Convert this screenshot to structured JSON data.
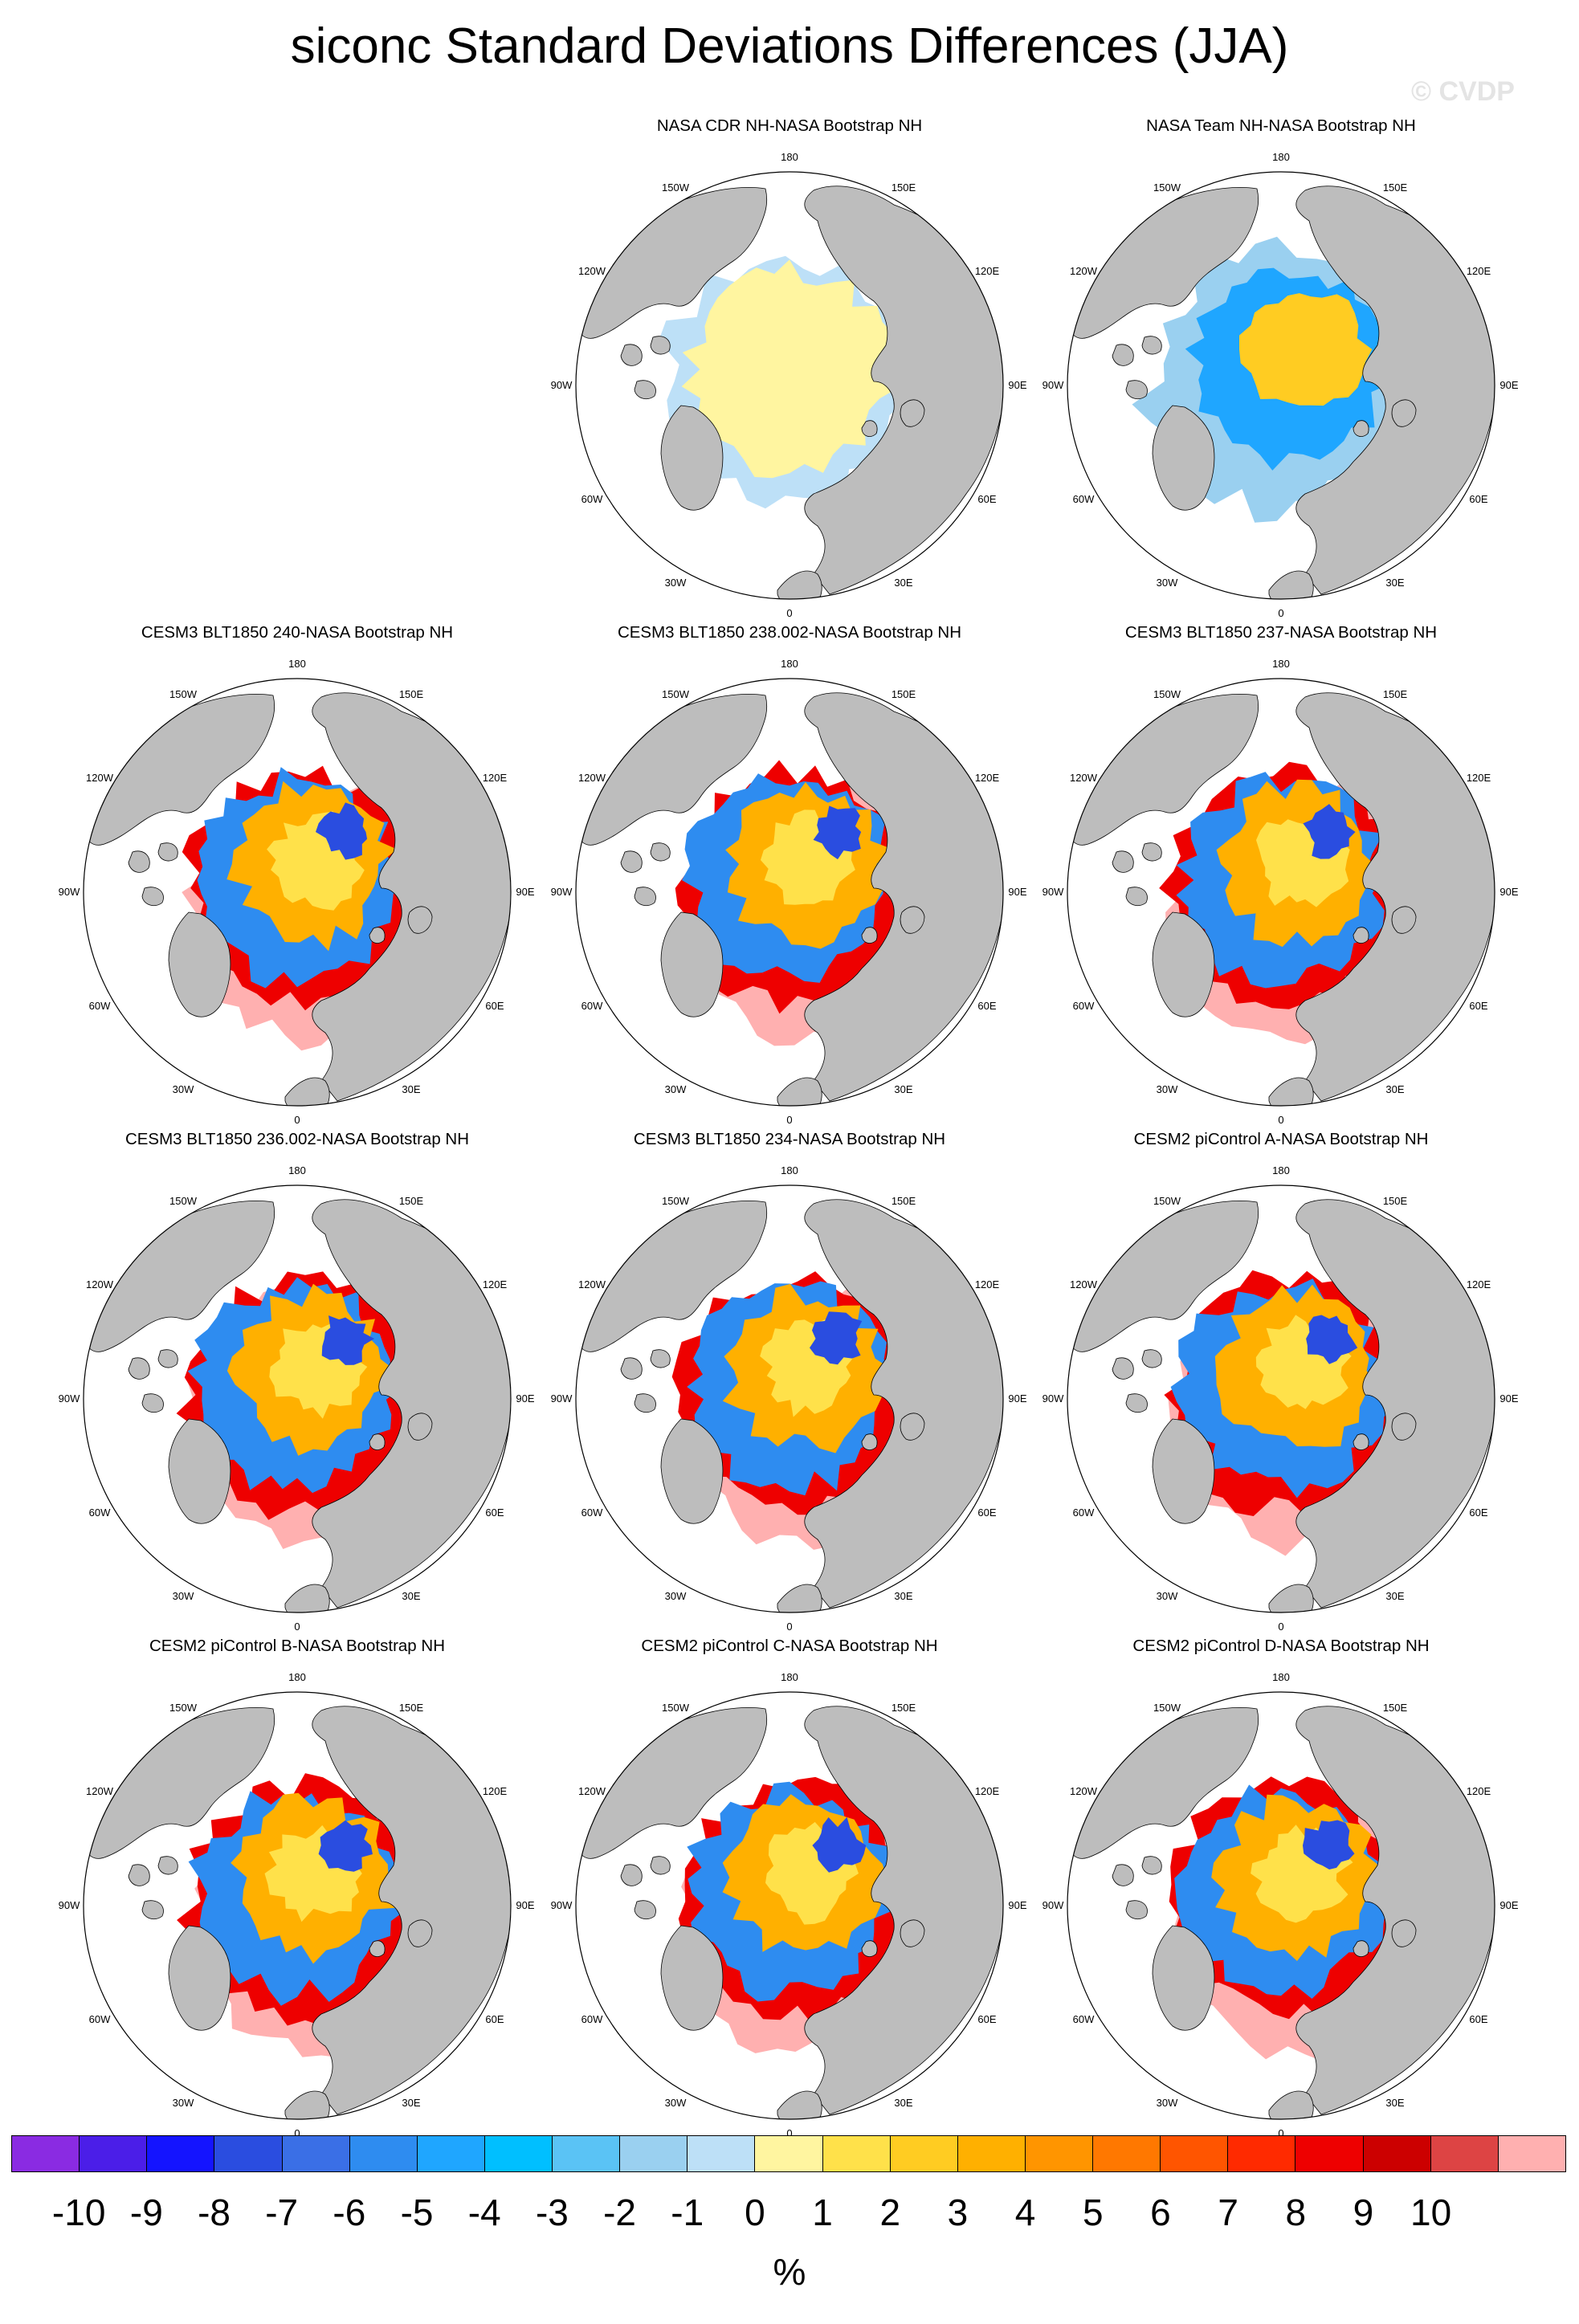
{
  "title": "siconc Standard Deviations Differences (JJA)",
  "watermark": "© CVDP",
  "lon_labels": [
    "180",
    "150E",
    "120E",
    "90E",
    "60E",
    "30E",
    "0",
    "30W",
    "60W",
    "90W",
    "120W",
    "150W"
  ],
  "panels": [
    {
      "title": "NASA CDR NH-NASA Bootstrap NH",
      "style": "cdr"
    },
    {
      "title": "NASA Team NH-NASA Bootstrap NH",
      "style": "team"
    },
    {
      "title": "CESM3 BLT1850 240-NASA Bootstrap NH",
      "style": "cesm3"
    },
    {
      "title": "CESM3 BLT1850 238.002-NASA Bootstrap NH",
      "style": "cesm3"
    },
    {
      "title": "CESM3 BLT1850 237-NASA Bootstrap NH",
      "style": "cesm3"
    },
    {
      "title": "CESM3 BLT1850 236.002-NASA Bootstrap NH",
      "style": "cesm3"
    },
    {
      "title": "CESM3 BLT1850 234-NASA Bootstrap NH",
      "style": "cesm3"
    },
    {
      "title": "CESM2 piControl A-NASA Bootstrap NH",
      "style": "cesm2"
    },
    {
      "title": "CESM2 piControl B-NASA Bootstrap NH",
      "style": "cesm2"
    },
    {
      "title": "CESM2 piControl C-NASA Bootstrap NH",
      "style": "cesm2"
    },
    {
      "title": "CESM2 piControl D-NASA Bootstrap NH",
      "style": "cesm2"
    }
  ],
  "colorbar": {
    "colors": [
      "#8a2be2",
      "#4b1ee8",
      "#1414ff",
      "#2a4de0",
      "#3a6fe6",
      "#2e8cf0",
      "#1fa6ff",
      "#00bfff",
      "#5ac3f5",
      "#9ad0f0",
      "#bde0f7",
      "#fff5a0",
      "#ffe14a",
      "#ffcc22",
      "#ffb000",
      "#ff9500",
      "#ff7800",
      "#ff5500",
      "#ff2a00",
      "#ee0000",
      "#cc0000",
      "#dd4444",
      "#ffb0b0"
    ],
    "labels": [
      "-10",
      "-9",
      "-8",
      "-7",
      "-6",
      "-5",
      "-4",
      "-3",
      "-2",
      "-1",
      "0",
      "1",
      "2",
      "3",
      "4",
      "5",
      "6",
      "7",
      "8",
      "9",
      "10"
    ],
    "units": "%"
  }
}
